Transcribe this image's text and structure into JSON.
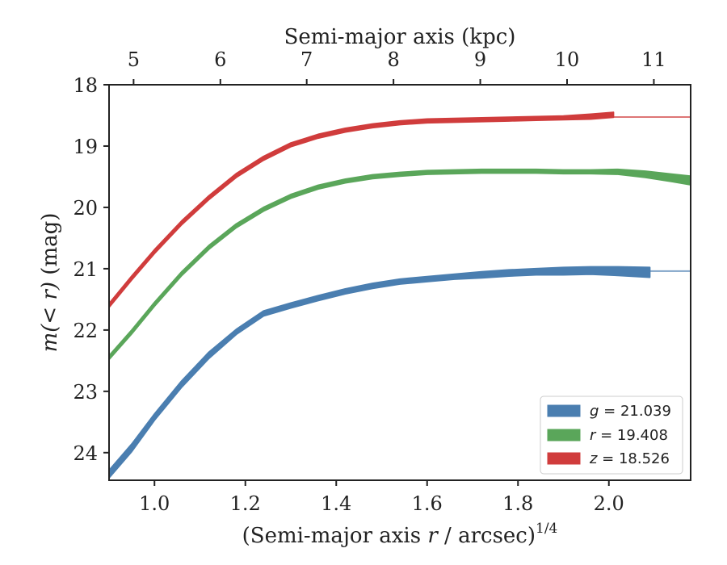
{
  "chart_data": {
    "type": "line",
    "xlabel_prefix": "(Semi-major axis ",
    "xlabel_var": "r",
    "xlabel_mid": " / arcsec)",
    "xlabel_sup": "1/4",
    "ylabel_var_m": "m",
    "ylabel_var_paren": "(< ",
    "ylabel_var_r": "r",
    "ylabel_close": ")",
    "ylabel_unit": " (mag)",
    "top_xlabel": "Semi-major axis (kpc)",
    "xlim": [
      0.9,
      2.18
    ],
    "ylim": [
      24.45,
      18.0
    ],
    "y_inverted": true,
    "x_ticks": [
      1.0,
      1.2,
      1.4,
      1.6,
      1.8,
      2.0
    ],
    "x_tick_labels": [
      "1.0",
      "1.2",
      "1.4",
      "1.6",
      "1.8",
      "2.0"
    ],
    "y_ticks": [
      18,
      19,
      20,
      21,
      22,
      23,
      24
    ],
    "y_tick_labels": [
      "18",
      "19",
      "20",
      "21",
      "22",
      "23",
      "24"
    ],
    "top_ticks_kpc": [
      5,
      6,
      7,
      8,
      9,
      10,
      11
    ],
    "top_tick_labels": [
      "5",
      "6",
      "7",
      "8",
      "9",
      "10",
      "11"
    ],
    "top_ticks_x": [
      0.954,
      1.145,
      1.335,
      1.526,
      1.717,
      1.908,
      2.099
    ],
    "legend_position": "lower-right",
    "grid": false,
    "series": [
      {
        "name": "g",
        "legend_var": "g",
        "legend_value": " = 21.039",
        "color": "#4a7eb0",
        "asymptote": 21.039,
        "x": [
          0.9,
          0.95,
          1.0,
          1.06,
          1.12,
          1.18,
          1.24,
          1.3,
          1.36,
          1.42,
          1.48,
          1.54,
          1.6,
          1.66,
          1.72,
          1.78,
          1.84,
          1.9,
          1.96,
          2.02,
          2.09
        ],
        "y": [
          24.35,
          23.92,
          23.42,
          22.88,
          22.41,
          22.03,
          21.73,
          21.6,
          21.48,
          21.37,
          21.28,
          21.21,
          21.17,
          21.13,
          21.1,
          21.07,
          21.05,
          21.04,
          21.03,
          21.04,
          21.06
        ],
        "band": [
          0.06,
          0.06,
          0.05,
          0.05,
          0.05,
          0.04,
          0.04,
          0.04,
          0.04,
          0.04,
          0.04,
          0.04,
          0.04,
          0.04,
          0.05,
          0.05,
          0.05,
          0.06,
          0.06,
          0.07,
          0.08
        ]
      },
      {
        "name": "r",
        "legend_var": "r",
        "legend_value": " = 19.408",
        "color": "#5aa65a",
        "asymptote": 19.408,
        "x": [
          0.9,
          0.95,
          1.0,
          1.06,
          1.12,
          1.18,
          1.24,
          1.3,
          1.36,
          1.42,
          1.48,
          1.54,
          1.6,
          1.66,
          1.72,
          1.78,
          1.84,
          1.9,
          1.96,
          2.02,
          2.08,
          2.14,
          2.18
        ],
        "y": [
          22.45,
          22.03,
          21.58,
          21.08,
          20.65,
          20.3,
          20.03,
          19.82,
          19.67,
          19.57,
          19.5,
          19.46,
          19.43,
          19.42,
          19.41,
          19.41,
          19.41,
          19.42,
          19.42,
          19.42,
          19.46,
          19.52,
          19.56
        ],
        "band": [
          0.03,
          0.03,
          0.03,
          0.03,
          0.03,
          0.03,
          0.03,
          0.03,
          0.03,
          0.03,
          0.03,
          0.03,
          0.03,
          0.03,
          0.03,
          0.03,
          0.03,
          0.03,
          0.03,
          0.04,
          0.05,
          0.06,
          0.07
        ]
      },
      {
        "name": "z",
        "legend_var": "z",
        "legend_value": " = 18.526",
        "color": "#d03c3c",
        "asymptote": 18.526,
        "x": [
          0.9,
          0.95,
          1.0,
          1.06,
          1.12,
          1.18,
          1.24,
          1.3,
          1.36,
          1.42,
          1.48,
          1.54,
          1.6,
          1.66,
          1.72,
          1.78,
          1.84,
          1.9,
          1.96,
          2.01
        ],
        "y": [
          21.6,
          21.15,
          20.72,
          20.25,
          19.84,
          19.48,
          19.2,
          18.98,
          18.84,
          18.74,
          18.67,
          18.62,
          18.59,
          18.58,
          18.57,
          18.56,
          18.55,
          18.54,
          18.52,
          18.49
        ],
        "band": [
          0.03,
          0.03,
          0.03,
          0.03,
          0.03,
          0.03,
          0.03,
          0.03,
          0.03,
          0.03,
          0.03,
          0.03,
          0.03,
          0.03,
          0.03,
          0.03,
          0.03,
          0.03,
          0.04,
          0.04
        ]
      }
    ]
  }
}
